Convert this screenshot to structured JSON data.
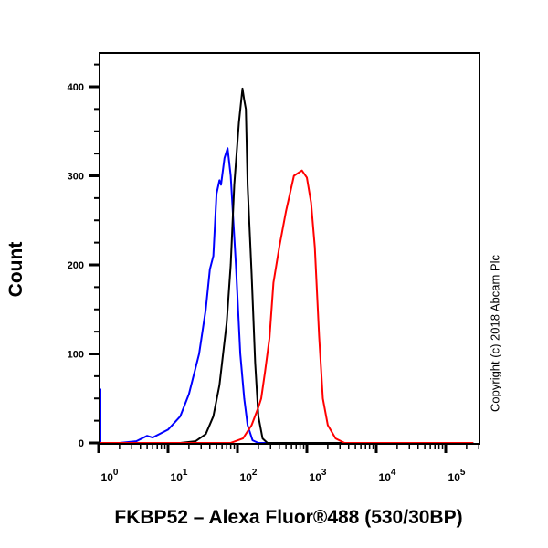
{
  "chart_data": {
    "type": "line",
    "title": "",
    "xlabel": "FKBP52 – Alexa Fluor®488 (530/30BP)",
    "ylabel": "Count",
    "x_scale": "log",
    "xlim": [
      0.8,
      250000
    ],
    "ylim": [
      0,
      440
    ],
    "x_ticks": [
      {
        "value": 1,
        "base": "10",
        "exp": "0"
      },
      {
        "value": 10,
        "base": "10",
        "exp": "1"
      },
      {
        "value": 100,
        "base": "10",
        "exp": "2"
      },
      {
        "value": 1000,
        "base": "10",
        "exp": "3"
      },
      {
        "value": 10000,
        "base": "10",
        "exp": "4"
      },
      {
        "value": 100000,
        "base": "10",
        "exp": "5"
      }
    ],
    "y_ticks": [
      0,
      100,
      200,
      300,
      400
    ],
    "grid": false,
    "legend": null,
    "series": [
      {
        "name": "blue",
        "color": "#0000ff",
        "points": [
          [
            0.8,
            61
          ],
          [
            0.9,
            8
          ],
          [
            1.0,
            0
          ],
          [
            2.0,
            0
          ],
          [
            3.5,
            2
          ],
          [
            5,
            8
          ],
          [
            6,
            6
          ],
          [
            10,
            15
          ],
          [
            15,
            30
          ],
          [
            20,
            55
          ],
          [
            28,
            100
          ],
          [
            35,
            150
          ],
          [
            40,
            195
          ],
          [
            45,
            210
          ],
          [
            50,
            280
          ],
          [
            55,
            295
          ],
          [
            58,
            290
          ],
          [
            65,
            320
          ],
          [
            72,
            331
          ],
          [
            80,
            300
          ],
          [
            95,
            200
          ],
          [
            110,
            100
          ],
          [
            125,
            50
          ],
          [
            140,
            20
          ],
          [
            165,
            3
          ],
          [
            200,
            0
          ],
          [
            250000,
            0
          ]
        ]
      },
      {
        "name": "black",
        "color": "#000000",
        "points": [
          [
            0.8,
            0
          ],
          [
            15,
            0
          ],
          [
            25,
            2
          ],
          [
            35,
            10
          ],
          [
            45,
            30
          ],
          [
            55,
            65
          ],
          [
            70,
            135
          ],
          [
            80,
            200
          ],
          [
            90,
            290
          ],
          [
            105,
            360
          ],
          [
            118,
            398
          ],
          [
            125,
            385
          ],
          [
            132,
            375
          ],
          [
            140,
            290
          ],
          [
            160,
            190
          ],
          [
            180,
            90
          ],
          [
            200,
            30
          ],
          [
            230,
            5
          ],
          [
            270,
            0
          ],
          [
            250000,
            0
          ]
        ]
      },
      {
        "name": "red",
        "color": "#ff0000",
        "points": [
          [
            0.8,
            0
          ],
          [
            80,
            0
          ],
          [
            120,
            5
          ],
          [
            160,
            20
          ],
          [
            200,
            40
          ],
          [
            220,
            50
          ],
          [
            250,
            80
          ],
          [
            290,
            118
          ],
          [
            330,
            180
          ],
          [
            400,
            220
          ],
          [
            500,
            260
          ],
          [
            650,
            300
          ],
          [
            850,
            306
          ],
          [
            1000,
            298
          ],
          [
            1150,
            270
          ],
          [
            1300,
            220
          ],
          [
            1500,
            120
          ],
          [
            1700,
            50
          ],
          [
            2000,
            20
          ],
          [
            2600,
            5
          ],
          [
            3500,
            0
          ],
          [
            250000,
            0
          ]
        ]
      }
    ],
    "annotations": [
      "Copyright (c) 2018 Abcam Plc"
    ]
  },
  "labels": {
    "y_axis": "Count",
    "x_axis": "FKBP52 – Alexa Fluor®488 (530/30BP)",
    "copyright": "Copyright (c) 2018 Abcam Plc"
  }
}
